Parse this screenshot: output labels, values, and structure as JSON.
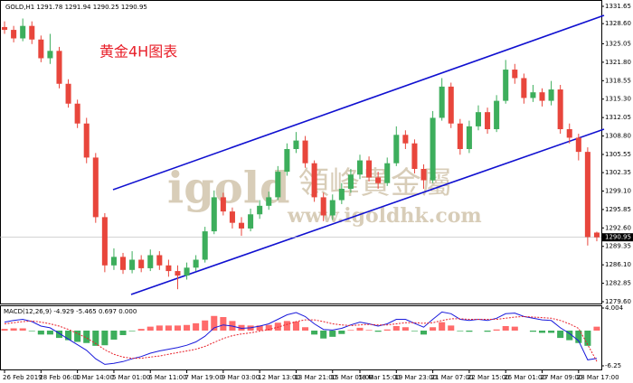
{
  "chart_data": [
    {
      "type": "candlestick",
      "title": "GOLD,H1  1291.78 1291.94 1290.25 1290.95",
      "annotation": "黄金4H图表",
      "watermark": {
        "logo": "igold",
        "name": "領峰貴金屬",
        "url": "www.igoldhk.com"
      },
      "categories": [
        "26 Feb 2019",
        null,
        null,
        null,
        "28 Feb 06:00",
        null,
        null,
        null,
        "1 Mar 14:00",
        null,
        null,
        null,
        "5 Mar 01:00",
        null,
        null,
        null,
        "6 Mar 11:00",
        null,
        null,
        null,
        "7 Mar 19:00",
        null,
        null,
        null,
        "9 Mar 03:00",
        null,
        null,
        null,
        "12 Mar 13:00",
        null,
        null,
        null,
        "13 Mar 21:00",
        null,
        null,
        null,
        "15 Mar 05:00",
        null,
        null,
        "18 Mar 15:00",
        null,
        null,
        null,
        "19 Mar 23:00",
        null,
        null,
        null,
        "21 Mar 07:00",
        null,
        null,
        null,
        "22 Mar 15:00",
        null,
        null,
        null,
        "26 Mar 01:00",
        null,
        null,
        null,
        "27 Mar 09:00",
        null,
        null,
        null,
        "28 Mar 17:00",
        null,
        null
      ],
      "open": [
        1328.0,
        1327.5,
        1326.0,
        1328.2,
        1325.8,
        1322.5,
        1323.8,
        1318.0,
        1314.5,
        1311.0,
        1305.0,
        1294.5,
        1286.0,
        1287.5,
        1285.2,
        1287.0,
        1285.5,
        1287.8,
        1286.0,
        1285.0,
        1284.2,
        1285.6,
        1287.0,
        1292.0,
        1298.0,
        1295.5,
        1293.5,
        1292.5,
        1295.0,
        1296.5,
        1298.0,
        1302.5,
        1306.5,
        1308.0,
        1304.0,
        1298.0,
        1294.8,
        1297.5,
        1299.5,
        1302.0,
        1304.5,
        1301.5,
        1300.5,
        1304.0,
        1309.0,
        1307.5,
        1303.0,
        1301.0,
        1312.0,
        1317.5,
        1311.0,
        1306.5,
        1310.5,
        1313.0,
        1310.0,
        1315.0,
        1320.5,
        1319.0,
        1315.5,
        1316.5,
        1315.0,
        1317.0,
        1310.0,
        1308.5,
        1306.0,
        1291.78
      ],
      "high": [
        1329.0,
        1328.2,
        1329.5,
        1329.0,
        1326.5,
        1326.8,
        1324.5,
        1318.8,
        1315.2,
        1312.0,
        1305.8,
        1295.2,
        1289.0,
        1288.2,
        1288.5,
        1287.8,
        1288.8,
        1288.5,
        1287.0,
        1286.0,
        1286.5,
        1287.8,
        1292.8,
        1299.2,
        1298.8,
        1296.2,
        1294.5,
        1296.0,
        1297.5,
        1299.0,
        1303.5,
        1307.5,
        1309.5,
        1308.8,
        1304.5,
        1298.8,
        1298.5,
        1300.5,
        1303.0,
        1305.5,
        1305.2,
        1302.5,
        1305.0,
        1310.5,
        1309.8,
        1308.2,
        1303.8,
        1313.2,
        1319.0,
        1318.2,
        1311.8,
        1311.5,
        1314.2,
        1313.8,
        1316.0,
        1322.2,
        1321.5,
        1319.8,
        1317.8,
        1317.2,
        1318.5,
        1317.8,
        1311.0,
        1309.2,
        1306.8,
        1291.94
      ],
      "low": [
        1326.8,
        1325.3,
        1325.5,
        1325.0,
        1321.8,
        1321.5,
        1317.2,
        1313.8,
        1310.2,
        1304.0,
        1293.5,
        1284.8,
        1285.2,
        1284.5,
        1284.6,
        1284.8,
        1285.0,
        1285.2,
        1284.0,
        1281.8,
        1283.5,
        1285.0,
        1286.5,
        1291.5,
        1294.8,
        1292.5,
        1291.2,
        1292.0,
        1294.2,
        1295.8,
        1297.5,
        1301.8,
        1305.8,
        1303.2,
        1297.2,
        1293.8,
        1294.0,
        1296.8,
        1298.8,
        1301.2,
        1300.8,
        1299.5,
        1300.0,
        1303.5,
        1306.5,
        1302.2,
        1299.5,
        1300.5,
        1311.5,
        1310.2,
        1305.5,
        1305.8,
        1309.8,
        1309.2,
        1309.5,
        1314.5,
        1318.0,
        1314.5,
        1314.8,
        1314.0,
        1314.2,
        1309.2,
        1307.5,
        1304.5,
        1289.5,
        1290.25
      ],
      "close": [
        1327.5,
        1326.0,
        1328.2,
        1325.8,
        1322.5,
        1323.8,
        1318.0,
        1314.5,
        1311.0,
        1305.0,
        1294.5,
        1286.0,
        1287.5,
        1285.2,
        1287.0,
        1285.5,
        1287.8,
        1286.0,
        1285.0,
        1284.2,
        1285.6,
        1287.0,
        1292.0,
        1298.0,
        1295.5,
        1293.5,
        1292.5,
        1295.0,
        1296.5,
        1298.0,
        1302.5,
        1306.5,
        1308.0,
        1304.0,
        1298.0,
        1294.8,
        1297.5,
        1299.5,
        1302.0,
        1304.5,
        1301.5,
        1300.5,
        1304.0,
        1309.0,
        1307.5,
        1303.0,
        1301.0,
        1312.0,
        1317.5,
        1311.0,
        1306.5,
        1310.5,
        1313.0,
        1310.0,
        1315.0,
        1320.5,
        1319.0,
        1315.5,
        1316.5,
        1315.0,
        1317.0,
        1310.0,
        1308.5,
        1306.0,
        1291.0,
        1290.95
      ],
      "up_color": "#3dae5c",
      "down_color": "#e8463c",
      "ylim": [
        1279.6,
        1331.65
      ],
      "yticks": [
        1331.65,
        {
          "value": 1328.6,
          "label": "1328.60"
        },
        1325.05,
        {
          "value": 1321.8,
          "label": "1321.80"
        },
        1318.55,
        {
          "value": 1315.3,
          "label": "1315.30"
        },
        1312.05,
        {
          "value": 1308.8,
          "label": "1308.80"
        },
        1305.55,
        1302.35,
        {
          "value": 1299.1,
          "label": "1299.10"
        },
        1295.85,
        {
          "value": 1292.6,
          "label": "1292.60"
        },
        1289.35,
        {
          "value": 1286.1,
          "label": "1286.10"
        },
        1282.85,
        {
          "value": 1279.6,
          "label": "1279.60"
        }
      ],
      "current_price": 1290.95
    },
    {
      "type": "macd",
      "title": "MACD(12,26,9) -4.929 -5.465 0.697 0.000",
      "histogram": [
        0.3,
        0.4,
        0.4,
        -0.1,
        -0.7,
        -0.7,
        -1.3,
        -1.7,
        -2.0,
        -2.2,
        -2.7,
        -2.6,
        -1.6,
        -0.8,
        -0.1,
        0.3,
        0.7,
        0.9,
        0.9,
        0.9,
        1.0,
        1.3,
        1.8,
        2.6,
        2.4,
        1.7,
        1.0,
        0.9,
        0.9,
        1.0,
        1.4,
        1.7,
        1.6,
        0.6,
        -0.7,
        -1.4,
        -1.1,
        -0.6,
        0.1,
        0.5,
        0.1,
        -0.2,
        0.2,
        0.8,
        0.6,
        -0.1,
        -0.7,
        0.6,
        1.5,
        0.9,
        -0.1,
        -0.2,
        0.0,
        -0.2,
        0.2,
        0.8,
        0.7,
        0.0,
        -0.2,
        -0.4,
        -0.4,
        -1.3,
        -1.7,
        -2.2,
        -2.7,
        0.697
      ],
      "positive_color": "#ff6b6b",
      "negative_color": "#3dae5c",
      "series": [
        {
          "color": "#1a1adb",
          "values": [
            1.5,
            1.8,
            2.0,
            1.6,
            0.8,
            0.5,
            -0.5,
            -1.5,
            -2.5,
            -3.5,
            -5.0,
            -6.0,
            -5.8,
            -5.5,
            -5.0,
            -4.6,
            -4.0,
            -3.6,
            -3.3,
            -3.0,
            -2.6,
            -2.0,
            -1.0,
            0.5,
            1.0,
            0.8,
            0.4,
            0.5,
            0.8,
            1.2,
            2.0,
            2.8,
            3.2,
            2.5,
            1.2,
            0.2,
            0.1,
            0.4,
            1.0,
            1.5,
            1.2,
            0.8,
            1.2,
            2.0,
            2.0,
            1.3,
            0.6,
            2.0,
            3.3,
            3.0,
            2.0,
            1.8,
            2.0,
            1.8,
            2.2,
            3.0,
            3.1,
            2.5,
            2.2,
            1.9,
            1.8,
            0.5,
            -0.5,
            -1.8,
            -5.2,
            -4.929
          ]
        },
        {
          "color": "#e8202a",
          "dashed": true,
          "values": [
            1.2,
            1.4,
            1.6,
            1.7,
            1.5,
            1.2,
            0.8,
            0.2,
            -0.5,
            -1.3,
            -2.3,
            -3.4,
            -4.2,
            -4.7,
            -4.9,
            -4.9,
            -4.7,
            -4.5,
            -4.2,
            -3.9,
            -3.6,
            -3.3,
            -2.8,
            -2.1,
            -1.4,
            -0.9,
            -0.6,
            -0.4,
            -0.1,
            0.2,
            0.6,
            1.1,
            1.6,
            1.9,
            1.9,
            1.6,
            1.2,
            1.0,
            0.9,
            1.0,
            1.1,
            1.0,
            1.0,
            1.2,
            1.4,
            1.4,
            1.3,
            1.4,
            1.8,
            2.1,
            2.1,
            2.0,
            2.0,
            2.0,
            2.0,
            2.2,
            2.4,
            2.5,
            2.4,
            2.3,
            2.2,
            1.8,
            1.2,
            0.4,
            -2.5,
            -5.465
          ]
        }
      ],
      "ylim": [
        -6.25,
        4.004
      ],
      "yticks": [
        4.004,
        -6.25
      ]
    }
  ]
}
